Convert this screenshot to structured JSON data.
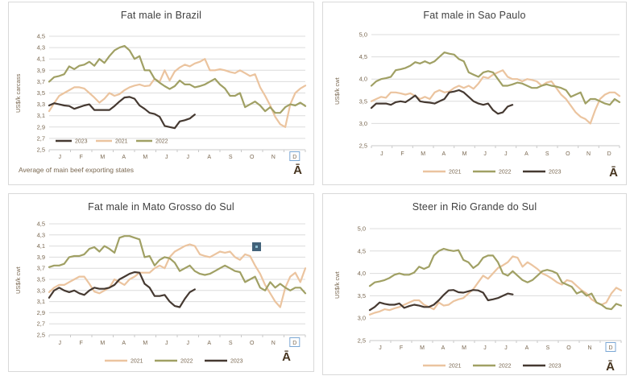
{
  "logo_glyph": "Ā",
  "months": [
    "J",
    "F",
    "M",
    "A",
    "M",
    "J",
    "J",
    "A",
    "S",
    "O",
    "N",
    "D"
  ],
  "colors": {
    "grid": "#dcdcdc",
    "axis_line": "#c9c9c9",
    "axis_text": "#7a6851",
    "title_text": "#3f3f3f",
    "panel_border": "#d9d9d9",
    "selection_box": "#7aa7d4",
    "artifact_fill": "#42627a"
  },
  "chart_data": [
    {
      "type": "line",
      "title": "Fat male in Brazil",
      "ylabel": "US$/k carcass",
      "footnote": "Average  of main beef exporting states",
      "ylim": [
        2.5,
        4.5
      ],
      "yticks": [
        2.5,
        2.7,
        2.9,
        3.1,
        3.3,
        3.5,
        3.7,
        3.9,
        4.1,
        4.3,
        4.5
      ],
      "ytick_labels": [
        "2,5",
        "2,7",
        "2,9",
        "3,1",
        "3,3",
        "3,5",
        "3,7",
        "3,9",
        "4,1",
        "4,3",
        "4,5"
      ],
      "weeks": 52,
      "grid": true,
      "legend": {
        "position": "inside",
        "order": [
          "2023",
          "2021",
          "2022"
        ]
      },
      "last_month_boxed": true,
      "series": [
        {
          "name": "2021",
          "color": "#ebc49f",
          "values": [
            3.18,
            3.32,
            3.45,
            3.5,
            3.55,
            3.6,
            3.6,
            3.58,
            3.5,
            3.42,
            3.33,
            3.4,
            3.5,
            3.45,
            3.48,
            3.55,
            3.6,
            3.63,
            3.65,
            3.62,
            3.63,
            3.75,
            3.7,
            3.9,
            3.72,
            3.88,
            3.95,
            4.0,
            3.97,
            4.02,
            4.05,
            4.1,
            3.9,
            3.9,
            3.92,
            3.9,
            3.87,
            3.85,
            3.9,
            3.85,
            3.8,
            3.83,
            3.6,
            3.45,
            3.28,
            3.08,
            2.95,
            2.9,
            3.3,
            3.5,
            3.58,
            3.63
          ]
        },
        {
          "name": "2022",
          "color": "#a0a064",
          "values": [
            3.7,
            3.78,
            3.8,
            3.83,
            3.97,
            3.92,
            3.98,
            4.0,
            4.05,
            3.98,
            4.1,
            4.03,
            4.15,
            4.25,
            4.3,
            4.33,
            4.25,
            4.1,
            4.15,
            3.9,
            3.9,
            3.75,
            3.68,
            3.62,
            3.57,
            3.62,
            3.72,
            3.65,
            3.65,
            3.6,
            3.62,
            3.65,
            3.7,
            3.75,
            3.65,
            3.58,
            3.45,
            3.45,
            3.5,
            3.25,
            3.3,
            3.35,
            3.28,
            3.18,
            3.25,
            3.15,
            3.15,
            3.25,
            3.3,
            3.28,
            3.33,
            3.27
          ]
        },
        {
          "name": "2023",
          "color": "#453931",
          "values": [
            3.28,
            3.32,
            3.3,
            3.28,
            3.27,
            3.22,
            3.25,
            3.28,
            3.3,
            3.2,
            3.2,
            3.2,
            3.2,
            3.27,
            3.35,
            3.42,
            3.43,
            3.4,
            3.28,
            3.22,
            3.15,
            3.13,
            3.08,
            2.92,
            2.9,
            2.88,
            3.0,
            3.02,
            3.05,
            3.12
          ]
        }
      ]
    },
    {
      "type": "line",
      "title": "Fat male in Sao Paulo",
      "ylabel": "US$/k cwt",
      "ylim": [
        2.5,
        5.0
      ],
      "yticks": [
        2.5,
        3.0,
        3.5,
        4.0,
        4.5,
        5.0
      ],
      "ytick_labels": [
        "2,5",
        "3,0",
        "3,5",
        "4,0",
        "4,5",
        "5,0"
      ],
      "weeks": 52,
      "grid": true,
      "legend": {
        "position": "below",
        "order": [
          "2021",
          "2022",
          "2023"
        ]
      },
      "last_month_boxed": false,
      "series": [
        {
          "name": "2021",
          "color": "#ebc49f",
          "values": [
            3.5,
            3.55,
            3.6,
            3.58,
            3.7,
            3.7,
            3.68,
            3.65,
            3.68,
            3.62,
            3.55,
            3.6,
            3.55,
            3.7,
            3.75,
            3.7,
            3.72,
            3.8,
            3.85,
            3.8,
            3.85,
            3.78,
            3.9,
            4.05,
            4.02,
            4.1,
            4.15,
            4.2,
            4.05,
            4.0,
            4.0,
            3.95,
            4.0,
            3.98,
            3.95,
            3.85,
            3.92,
            3.95,
            3.8,
            3.65,
            3.55,
            3.4,
            3.25,
            3.15,
            3.1,
            3.0,
            3.3,
            3.55,
            3.65,
            3.7,
            3.7,
            3.62
          ]
        },
        {
          "name": "2022",
          "color": "#a0a064",
          "values": [
            3.85,
            3.95,
            4.0,
            4.02,
            4.05,
            4.2,
            4.22,
            4.25,
            4.3,
            4.38,
            4.35,
            4.4,
            4.35,
            4.4,
            4.5,
            4.6,
            4.57,
            4.55,
            4.45,
            4.4,
            4.15,
            4.1,
            4.05,
            4.15,
            4.18,
            4.15,
            4.0,
            3.85,
            3.85,
            3.88,
            3.92,
            3.9,
            3.85,
            3.8,
            3.8,
            3.85,
            3.88,
            3.85,
            3.83,
            3.8,
            3.75,
            3.6,
            3.65,
            3.7,
            3.45,
            3.55,
            3.55,
            3.5,
            3.45,
            3.42,
            3.55,
            3.48
          ]
        },
        {
          "name": "2023",
          "color": "#453931",
          "values": [
            3.35,
            3.45,
            3.45,
            3.45,
            3.42,
            3.48,
            3.5,
            3.48,
            3.55,
            3.63,
            3.5,
            3.48,
            3.47,
            3.45,
            3.5,
            3.55,
            3.7,
            3.72,
            3.75,
            3.7,
            3.6,
            3.5,
            3.45,
            3.42,
            3.45,
            3.3,
            3.22,
            3.25,
            3.38,
            3.42
          ]
        }
      ]
    },
    {
      "type": "line",
      "title": "Fat male in Mato Grosso do Sul",
      "ylabel": "US$/k cwt",
      "ylim": [
        2.5,
        4.5
      ],
      "yticks": [
        2.5,
        2.7,
        2.9,
        3.1,
        3.3,
        3.5,
        3.7,
        3.9,
        4.1,
        4.3,
        4.5
      ],
      "ytick_labels": [
        "2,5",
        "2,7",
        "2,9",
        "3,1",
        "3,3",
        "3,5",
        "3,7",
        "3,9",
        "4,1",
        "4,3",
        "4,5"
      ],
      "weeks": 52,
      "grid": true,
      "legend": {
        "position": "below",
        "order": [
          "2021",
          "2022",
          "2023"
        ]
      },
      "last_month_boxed": true,
      "has_selection_handle": true,
      "series": [
        {
          "name": "2021",
          "color": "#ebc49f",
          "values": [
            3.27,
            3.35,
            3.4,
            3.4,
            3.45,
            3.5,
            3.55,
            3.55,
            3.42,
            3.28,
            3.25,
            3.3,
            3.35,
            3.5,
            3.45,
            3.4,
            3.5,
            3.55,
            3.62,
            3.62,
            3.62,
            3.7,
            3.75,
            3.7,
            3.9,
            4.0,
            4.05,
            4.1,
            4.13,
            4.1,
            3.95,
            3.92,
            3.9,
            3.95,
            4.0,
            3.98,
            4.0,
            3.9,
            3.85,
            3.95,
            3.92,
            3.75,
            3.6,
            3.4,
            3.25,
            3.1,
            3.0,
            3.35,
            3.55,
            3.62,
            3.45,
            3.7
          ]
        },
        {
          "name": "2022",
          "color": "#a0a064",
          "values": [
            3.72,
            3.75,
            3.75,
            3.78,
            3.9,
            3.92,
            3.92,
            3.95,
            4.05,
            4.08,
            4.0,
            4.1,
            4.05,
            3.98,
            4.25,
            4.28,
            4.28,
            4.25,
            4.22,
            3.9,
            3.92,
            3.75,
            3.85,
            3.9,
            3.88,
            3.8,
            3.65,
            3.7,
            3.75,
            3.65,
            3.6,
            3.58,
            3.6,
            3.65,
            3.7,
            3.75,
            3.7,
            3.65,
            3.63,
            3.45,
            3.5,
            3.55,
            3.35,
            3.3,
            3.45,
            3.35,
            3.42,
            3.35,
            3.3,
            3.35,
            3.35,
            3.25
          ]
        },
        {
          "name": "2023",
          "color": "#453931",
          "values": [
            3.17,
            3.3,
            3.35,
            3.3,
            3.27,
            3.3,
            3.25,
            3.22,
            3.3,
            3.35,
            3.33,
            3.33,
            3.35,
            3.4,
            3.5,
            3.55,
            3.6,
            3.63,
            3.62,
            3.42,
            3.35,
            3.2,
            3.2,
            3.22,
            3.1,
            3.02,
            3.0,
            3.15,
            3.27,
            3.32
          ]
        }
      ]
    },
    {
      "type": "line",
      "title": "Steer  in Rio Grande do Sul",
      "ylabel": "US$/k cwt",
      "ylim": [
        2.5,
        5.0
      ],
      "yticks": [
        2.5,
        3.0,
        3.5,
        4.0,
        4.5,
        5.0
      ],
      "ytick_labels": [
        "2,5",
        "3,0",
        "3,5",
        "4,0",
        "4,5",
        "5,0"
      ],
      "weeks": 52,
      "grid": true,
      "legend": {
        "position": "below",
        "order": [
          "2021",
          "2022",
          "2023"
        ]
      },
      "last_month_boxed": true,
      "series": [
        {
          "name": "2021",
          "color": "#ebc49f",
          "values": [
            3.08,
            3.12,
            3.15,
            3.2,
            3.18,
            3.22,
            3.25,
            3.3,
            3.35,
            3.4,
            3.4,
            3.3,
            3.25,
            3.2,
            3.35,
            3.28,
            3.3,
            3.38,
            3.42,
            3.45,
            3.55,
            3.65,
            3.8,
            3.95,
            3.88,
            4.0,
            4.12,
            4.18,
            4.25,
            4.38,
            4.35,
            4.15,
            4.25,
            4.18,
            4.1,
            4.0,
            3.95,
            3.88,
            3.8,
            3.75,
            3.85,
            3.82,
            3.72,
            3.62,
            3.55,
            3.42,
            3.35,
            3.3,
            3.35,
            3.55,
            3.68,
            3.62
          ]
        },
        {
          "name": "2022",
          "color": "#a0a064",
          "values": [
            3.72,
            3.8,
            3.82,
            3.85,
            3.9,
            3.97,
            4.0,
            3.97,
            3.97,
            4.02,
            4.15,
            4.1,
            4.15,
            4.4,
            4.5,
            4.55,
            4.52,
            4.5,
            4.52,
            4.3,
            4.25,
            4.12,
            4.2,
            4.35,
            4.4,
            4.4,
            4.25,
            4.0,
            3.95,
            4.05,
            3.95,
            3.85,
            3.8,
            3.85,
            3.95,
            4.05,
            4.08,
            4.05,
            4.0,
            3.8,
            3.75,
            3.7,
            3.55,
            3.6,
            3.5,
            3.55,
            3.35,
            3.3,
            3.22,
            3.2,
            3.32,
            3.28
          ]
        },
        {
          "name": "2023",
          "color": "#453931",
          "values": [
            3.18,
            3.25,
            3.35,
            3.32,
            3.3,
            3.3,
            3.33,
            3.23,
            3.27,
            3.3,
            3.28,
            3.25,
            3.25,
            3.3,
            3.4,
            3.52,
            3.62,
            3.63,
            3.58,
            3.57,
            3.6,
            3.63,
            3.62,
            3.57,
            3.4,
            3.42,
            3.45,
            3.5,
            3.55,
            3.53
          ]
        }
      ]
    }
  ]
}
